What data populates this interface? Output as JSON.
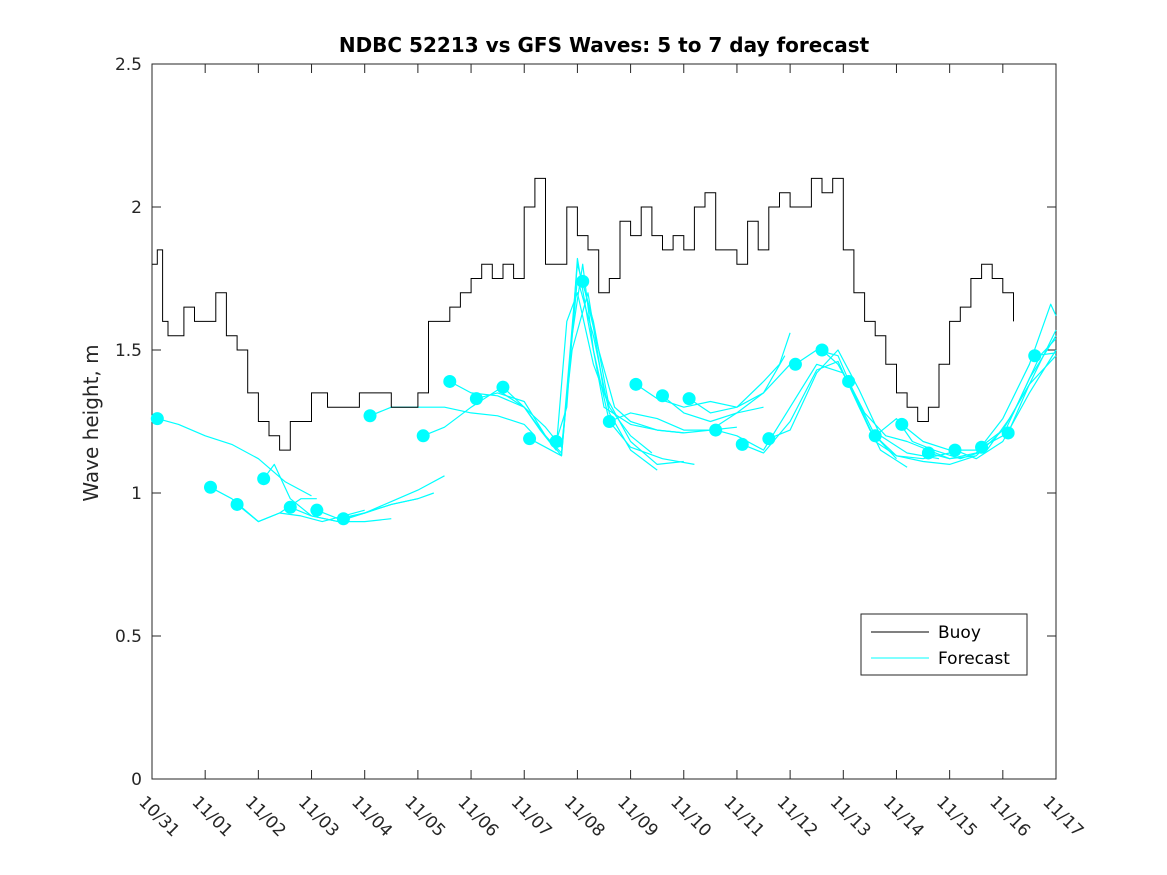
{
  "chart_data": {
    "type": "line",
    "title": "NDBC 52213 vs GFS Waves: 5 to 7 day forecast",
    "xlabel": "",
    "ylabel": "Wave height, m",
    "xlim_days": [
      0,
      17
    ],
    "ylim": [
      0,
      2.5
    ],
    "yticks": [
      "0",
      "0.5",
      "1",
      "1.5",
      "2",
      "2.5"
    ],
    "xticks": [
      "10/31",
      "11/01",
      "11/02",
      "11/03",
      "11/04",
      "11/05",
      "11/06",
      "11/07",
      "11/08",
      "11/09",
      "11/10",
      "11/11",
      "11/12",
      "11/13",
      "11/14",
      "11/15",
      "11/16",
      "11/17"
    ],
    "legend": {
      "position": "lower-right",
      "entries": [
        "Buoy",
        "Forecast"
      ]
    },
    "colors": {
      "buoy": "#000000",
      "forecast": "#00ffff",
      "axis": "#262626"
    },
    "buoy": {
      "name": "Buoy",
      "day": [
        0,
        0.1,
        0.2,
        0.3,
        0.4,
        0.6,
        0.8,
        1.0,
        1.2,
        1.4,
        1.6,
        1.8,
        2.0,
        2.2,
        2.4,
        2.6,
        2.8,
        3.0,
        3.3,
        3.6,
        3.9,
        4.2,
        4.5,
        4.8,
        5.0,
        5.2,
        5.4,
        5.6,
        5.8,
        6.0,
        6.2,
        6.4,
        6.6,
        6.8,
        7.0,
        7.2,
        7.4,
        7.6,
        7.8,
        8.0,
        8.2,
        8.4,
        8.6,
        8.8,
        9.0,
        9.2,
        9.4,
        9.6,
        9.8,
        10.0,
        10.2,
        10.4,
        10.6,
        10.8,
        11.0,
        11.2,
        11.4,
        11.6,
        11.8,
        12.0,
        12.2,
        12.4,
        12.6,
        12.8,
        13.0,
        13.2,
        13.4,
        13.6,
        13.8,
        14.0,
        14.2,
        14.4,
        14.6,
        14.8,
        15.0,
        15.2,
        15.4,
        15.6,
        15.8,
        16.0,
        16.2
      ],
      "values": [
        1.8,
        1.85,
        1.6,
        1.55,
        1.55,
        1.65,
        1.6,
        1.6,
        1.7,
        1.55,
        1.5,
        1.35,
        1.25,
        1.2,
        1.15,
        1.25,
        1.25,
        1.35,
        1.3,
        1.3,
        1.35,
        1.35,
        1.3,
        1.3,
        1.35,
        1.6,
        1.6,
        1.65,
        1.7,
        1.75,
        1.8,
        1.75,
        1.8,
        1.75,
        2.0,
        2.1,
        1.8,
        1.8,
        2.0,
        1.9,
        1.85,
        1.7,
        1.75,
        1.95,
        1.9,
        2.0,
        1.9,
        1.85,
        1.9,
        1.85,
        2.0,
        2.05,
        1.85,
        1.85,
        1.8,
        1.95,
        1.85,
        2.0,
        2.05,
        2.0,
        2.0,
        2.1,
        2.05,
        2.1,
        1.85,
        1.7,
        1.6,
        1.55,
        1.45,
        1.35,
        1.3,
        1.25,
        1.3,
        1.45,
        1.6,
        1.65,
        1.75,
        1.8,
        1.75,
        1.7,
        1.6
      ]
    },
    "forecast_runs": [
      {
        "day": [
          0.1,
          0.5,
          1.0,
          1.5,
          2.0,
          2.5,
          3.0
        ],
        "values": [
          1.26,
          1.24,
          1.2,
          1.17,
          1.12,
          1.04,
          0.99
        ]
      },
      {
        "day": [
          1.1,
          1.5,
          2.0,
          2.4,
          2.8,
          3.1
        ],
        "values": [
          1.02,
          0.98,
          0.9,
          0.93,
          0.98,
          0.98
        ]
      },
      {
        "day": [
          1.6,
          2.0,
          2.4,
          2.8,
          3.2,
          3.6,
          4.0
        ],
        "values": [
          0.96,
          0.9,
          0.93,
          0.92,
          0.9,
          0.92,
          0.94
        ]
      },
      {
        "day": [
          2.1,
          2.3,
          2.6,
          3.0,
          3.5,
          4.0,
          4.5
        ],
        "values": [
          1.05,
          1.1,
          0.98,
          0.92,
          0.9,
          0.9,
          0.91
        ]
      },
      {
        "day": [
          2.6,
          3.0,
          3.5,
          4.0,
          4.5,
          5.0
        ],
        "values": [
          0.95,
          0.92,
          0.9,
          0.93,
          0.96,
          0.98
        ]
      },
      {
        "day": [
          3.1,
          3.5,
          4.0,
          4.5,
          5.0,
          5.5
        ],
        "values": [
          0.94,
          0.91,
          0.93,
          0.97,
          1.01,
          1.06
        ]
      },
      {
        "day": [
          3.6,
          4.0,
          4.5,
          5.0,
          5.3
        ],
        "values": [
          0.91,
          0.93,
          0.96,
          0.98,
          1.0
        ]
      },
      {
        "day": [
          4.1,
          4.5,
          5.0,
          5.5,
          6.0,
          6.5,
          7.0,
          7.2
        ],
        "values": [
          1.27,
          1.3,
          1.3,
          1.3,
          1.28,
          1.27,
          1.24,
          1.2
        ]
      },
      {
        "day": [
          5.1,
          5.5,
          6.0,
          6.5,
          7.0,
          7.3,
          7.6,
          7.8,
          8.0,
          8.3,
          8.6
        ],
        "values": [
          1.2,
          1.23,
          1.3,
          1.36,
          1.3,
          1.22,
          1.15,
          1.6,
          1.7,
          1.45,
          1.3
        ]
      },
      {
        "day": [
          5.6,
          6.0,
          6.5,
          7.0,
          7.4,
          7.7,
          8.0,
          8.3,
          8.6,
          9.0,
          9.4
        ],
        "values": [
          1.39,
          1.35,
          1.34,
          1.3,
          1.2,
          1.14,
          1.8,
          1.6,
          1.3,
          1.2,
          1.14
        ]
      },
      {
        "day": [
          6.1,
          6.5,
          7.0,
          7.4,
          7.7,
          8.0,
          8.3,
          8.6,
          9.0,
          9.5
        ],
        "values": [
          1.33,
          1.35,
          1.32,
          1.2,
          1.13,
          1.75,
          1.55,
          1.28,
          1.15,
          1.08
        ]
      },
      {
        "day": [
          6.6,
          7.0,
          7.4,
          7.7,
          7.9,
          8.2,
          8.5,
          9.0,
          9.5,
          10.0
        ],
        "values": [
          1.37,
          1.3,
          1.23,
          1.16,
          1.5,
          1.7,
          1.35,
          1.18,
          1.1,
          1.11
        ]
      },
      {
        "day": [
          7.1,
          7.4,
          7.7,
          7.9,
          8.1,
          8.3,
          8.6,
          9.0,
          9.6,
          10.2
        ],
        "values": [
          1.19,
          1.16,
          1.13,
          1.55,
          1.8,
          1.5,
          1.25,
          1.16,
          1.12,
          1.1
        ]
      },
      {
        "day": [
          7.6,
          7.8,
          8.0,
          8.2,
          8.5,
          9.0,
          9.5,
          10.0
        ],
        "values": [
          1.18,
          1.3,
          1.82,
          1.6,
          1.3,
          1.24,
          1.22,
          1.21
        ]
      },
      {
        "day": [
          8.1,
          8.4,
          8.7,
          9.0,
          9.5,
          10.0,
          10.5,
          11.0
        ],
        "values": [
          1.74,
          1.5,
          1.3,
          1.25,
          1.22,
          1.21,
          1.22,
          1.23
        ]
      },
      {
        "day": [
          8.6,
          9.0,
          9.5,
          10.0,
          10.5,
          11.0,
          11.5
        ],
        "values": [
          1.25,
          1.28,
          1.26,
          1.22,
          1.22,
          1.28,
          1.3
        ]
      },
      {
        "day": [
          9.1,
          9.5,
          10.0,
          10.5,
          11.0,
          11.5,
          12.0
        ],
        "values": [
          1.38,
          1.33,
          1.3,
          1.32,
          1.3,
          1.35,
          1.45
        ]
      },
      {
        "day": [
          9.6,
          10.0,
          10.5,
          11.0,
          11.5,
          11.9
        ],
        "values": [
          1.34,
          1.28,
          1.25,
          1.28,
          1.35,
          1.48
        ]
      },
      {
        "day": [
          10.1,
          10.5,
          11.0,
          11.5,
          11.8,
          12.0
        ],
        "values": [
          1.33,
          1.28,
          1.3,
          1.39,
          1.45,
          1.56
        ]
      },
      {
        "day": [
          10.6,
          11.0,
          11.5,
          12.0,
          12.5,
          13.0,
          13.5,
          14.0
        ],
        "values": [
          1.22,
          1.2,
          1.15,
          1.3,
          1.45,
          1.42,
          1.22,
          1.12
        ]
      },
      {
        "day": [
          11.1,
          11.5,
          12.0,
          12.5,
          12.9,
          13.3,
          13.7,
          14.2
        ],
        "values": [
          1.17,
          1.14,
          1.25,
          1.43,
          1.46,
          1.3,
          1.15,
          1.09
        ]
      },
      {
        "day": [
          11.6,
          12.0,
          12.5,
          12.9,
          13.3,
          13.7,
          14.2,
          14.8
        ],
        "values": [
          1.19,
          1.22,
          1.42,
          1.5,
          1.36,
          1.2,
          1.14,
          1.12
        ]
      },
      {
        "day": [
          12.1,
          12.5,
          12.9,
          13.2,
          13.6,
          14.0,
          14.5,
          15.0
        ],
        "values": [
          1.45,
          1.5,
          1.48,
          1.35,
          1.18,
          1.13,
          1.12,
          1.14
        ]
      },
      {
        "day": [
          12.6,
          12.9,
          13.2,
          13.6,
          14.0,
          14.5,
          15.0,
          15.5
        ],
        "values": [
          1.5,
          1.45,
          1.35,
          1.2,
          1.13,
          1.11,
          1.1,
          1.13
        ]
      },
      {
        "day": [
          13.1,
          13.4,
          13.8,
          14.2,
          14.6,
          15.0,
          15.5,
          16.0,
          16.5
        ],
        "values": [
          1.39,
          1.28,
          1.2,
          1.18,
          1.15,
          1.12,
          1.13,
          1.22,
          1.38
        ]
      },
      {
        "day": [
          13.6,
          14.0,
          14.3,
          14.7,
          15.2,
          15.7,
          16.2,
          16.7,
          17.0
        ],
        "values": [
          1.2,
          1.26,
          1.18,
          1.15,
          1.12,
          1.15,
          1.28,
          1.48,
          1.54
        ]
      },
      {
        "day": [
          14.1,
          14.5,
          15.0,
          15.5,
          16.0,
          16.5,
          17.0
        ],
        "values": [
          1.24,
          1.18,
          1.15,
          1.15,
          1.22,
          1.38,
          1.57
        ]
      },
      {
        "day": [
          14.6,
          15.0,
          15.5,
          16.0,
          16.5,
          16.9,
          17.0
        ],
        "values": [
          1.14,
          1.12,
          1.14,
          1.26,
          1.45,
          1.66,
          1.62
        ]
      },
      {
        "day": [
          15.1,
          15.5,
          16.0,
          16.5,
          17.0
        ],
        "values": [
          1.15,
          1.12,
          1.18,
          1.35,
          1.5
        ]
      },
      {
        "day": [
          15.6,
          16.0,
          16.5,
          17.0
        ],
        "values": [
          1.16,
          1.2,
          1.4,
          1.55
        ]
      },
      {
        "day": [
          16.1,
          16.5,
          17.0
        ],
        "values": [
          1.21,
          1.38,
          1.48
        ]
      },
      {
        "day": [
          16.6,
          17.0
        ],
        "values": [
          1.48,
          1.49
        ]
      }
    ]
  }
}
